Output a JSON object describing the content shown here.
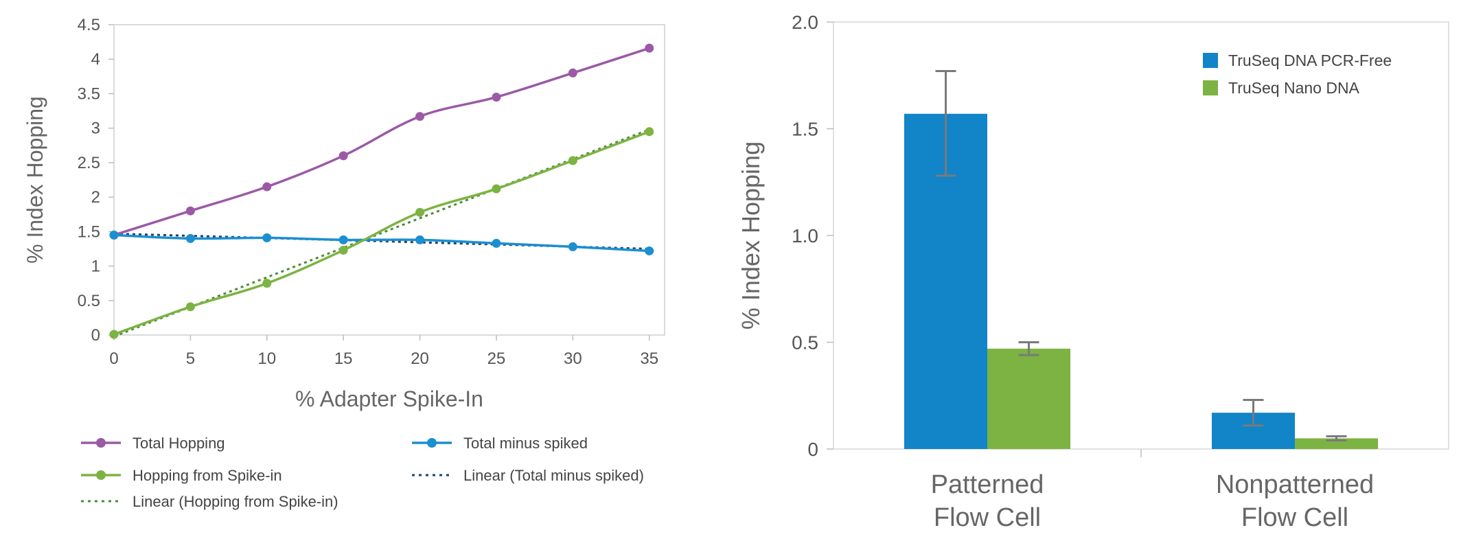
{
  "chart_data": [
    {
      "type": "line",
      "xlabel": "% Adapter Spike-In",
      "ylabel": "% Index Hopping",
      "x": [
        0,
        5,
        10,
        15,
        20,
        25,
        30,
        35
      ],
      "xlim": [
        0,
        36
      ],
      "ylim": [
        0,
        4.5
      ],
      "x_ticks": [
        "0",
        "5",
        "10",
        "15",
        "20",
        "25",
        "30",
        "35"
      ],
      "y_ticks": [
        "0",
        "0.5",
        "1",
        "1.5",
        "2",
        "2.5",
        "3",
        "3.5",
        "4",
        "4.5"
      ],
      "legend_position": "bottom",
      "series": [
        {
          "name": "Total Hopping",
          "color": "#9b59a6",
          "style": "solid-markers",
          "values": [
            1.45,
            1.8,
            2.15,
            2.6,
            3.17,
            3.45,
            3.8,
            4.16
          ]
        },
        {
          "name": "Total minus spiked",
          "color": "#1b8fd1",
          "style": "solid-markers",
          "values": [
            1.45,
            1.4,
            1.41,
            1.38,
            1.38,
            1.33,
            1.28,
            1.22
          ]
        },
        {
          "name": "Hopping from Spike-in",
          "color": "#7cb342",
          "style": "solid-markers",
          "values": [
            0.01,
            0.41,
            0.75,
            1.23,
            1.78,
            2.12,
            2.53,
            2.95
          ]
        },
        {
          "name": "Linear (Total minus spiked)",
          "color": "#1f3f73",
          "style": "dotted",
          "values": [
            1.47,
            1.44,
            1.41,
            1.38,
            1.35,
            1.32,
            1.29,
            1.25
          ]
        },
        {
          "name": "Linear (Hopping from Spike-in)",
          "color": "#4e8a3a",
          "style": "dotted",
          "values": [
            -0.02,
            0.41,
            0.84,
            1.27,
            1.69,
            2.12,
            2.55,
            2.98
          ]
        }
      ]
    },
    {
      "type": "bar",
      "ylabel": "% Index Hopping",
      "categories": [
        "Patterned\nFlow Cell",
        "Nonpatterned\nFlow Cell"
      ],
      "category_lines": [
        [
          "Patterned",
          "Flow Cell"
        ],
        [
          "Nonpatterned",
          "Flow Cell"
        ]
      ],
      "ylim": [
        0,
        2.0
      ],
      "y_ticks": [
        "0",
        "0.5",
        "1.0",
        "1.5",
        "2.0"
      ],
      "legend_position": "top-right",
      "series": [
        {
          "name": "TruSeq DNA PCR-Free",
          "color": "#1284c8",
          "values": [
            1.57,
            0.17
          ],
          "error_low": [
            1.28,
            0.11
          ],
          "error_high": [
            1.77,
            0.23
          ]
        },
        {
          "name": "TruSeq Nano DNA",
          "color": "#7cb342",
          "values": [
            0.47,
            0.05
          ],
          "error_low": [
            0.44,
            0.04
          ],
          "error_high": [
            0.5,
            0.06
          ]
        }
      ]
    }
  ]
}
